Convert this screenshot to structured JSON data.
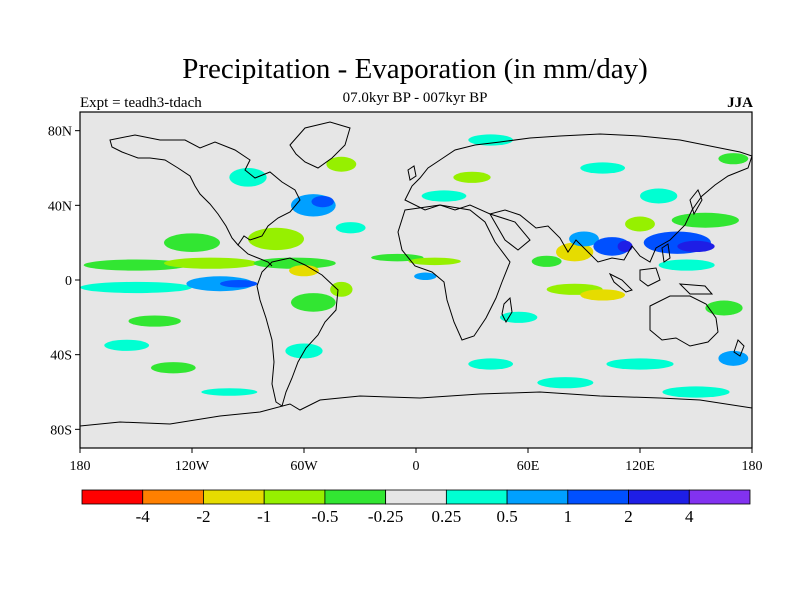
{
  "title": "Precipitation - Evaporation (in mm/day)",
  "subtitle": "07.0kyr BP - 007kyr BP",
  "experiment": "Expt = teadh3-tdach",
  "season": "JJA",
  "map": {
    "projection": "cylindrical equidistant",
    "lon_range": [
      -180,
      180
    ],
    "lat_range": [
      -90,
      90
    ],
    "lon_ticks": [
      {
        "value": -180,
        "label": "180"
      },
      {
        "value": -120,
        "label": "120W"
      },
      {
        "value": -60,
        "label": "60W"
      },
      {
        "value": 0,
        "label": "0"
      },
      {
        "value": 60,
        "label": "60E"
      },
      {
        "value": 120,
        "label": "120E"
      },
      {
        "value": 180,
        "label": "180"
      }
    ],
    "lat_ticks": [
      {
        "value": 80,
        "label": "80N"
      },
      {
        "value": 40,
        "label": "40N"
      },
      {
        "value": 0,
        "label": "0"
      },
      {
        "value": -40,
        "label": "40S"
      },
      {
        "value": -80,
        "label": "80S"
      }
    ],
    "background_color": "#e6e6e6",
    "coastline_color": "#000000"
  },
  "colorbar": {
    "colors": [
      "#ff0000",
      "#ff8000",
      "#e6dc00",
      "#96f000",
      "#32e632",
      "#e6e6e6",
      "#00ffd2",
      "#00a0ff",
      "#0050ff",
      "#1e1ee6",
      "#8232f0"
    ],
    "labels": [
      "-4",
      "-2",
      "-1",
      "-0.5",
      "-0.25",
      "0.25",
      "0.5",
      "1",
      "2",
      "4"
    ]
  },
  "field_patches": [
    {
      "lon": -150,
      "lat": 8,
      "rx": 28,
      "ry": 3,
      "level": 4
    },
    {
      "lon": -110,
      "lat": 9,
      "rx": 25,
      "ry": 3,
      "level": 3
    },
    {
      "lon": -65,
      "lat": 9,
      "rx": 22,
      "ry": 3,
      "level": 4
    },
    {
      "lon": -150,
      "lat": -4,
      "rx": 30,
      "ry": 3,
      "level": 6
    },
    {
      "lon": -105,
      "lat": -2,
      "rx": 18,
      "ry": 4,
      "level": 7
    },
    {
      "lon": -95,
      "lat": -2,
      "rx": 10,
      "ry": 2,
      "level": 8
    },
    {
      "lon": -120,
      "lat": 20,
      "rx": 15,
      "ry": 5,
      "level": 4
    },
    {
      "lon": -75,
      "lat": 22,
      "rx": 15,
      "ry": 6,
      "level": 3
    },
    {
      "lon": -55,
      "lat": 40,
      "rx": 12,
      "ry": 6,
      "level": 7
    },
    {
      "lon": -50,
      "lat": 42,
      "rx": 6,
      "ry": 3,
      "level": 8
    },
    {
      "lon": -40,
      "lat": 62,
      "rx": 8,
      "ry": 4,
      "level": 3
    },
    {
      "lon": -90,
      "lat": 55,
      "rx": 10,
      "ry": 5,
      "level": 6
    },
    {
      "lon": -60,
      "lat": 5,
      "rx": 8,
      "ry": 3,
      "level": 2
    },
    {
      "lon": -55,
      "lat": -12,
      "rx": 12,
      "ry": 5,
      "level": 4
    },
    {
      "lon": -40,
      "lat": -5,
      "rx": 6,
      "ry": 4,
      "level": 3
    },
    {
      "lon": -60,
      "lat": -38,
      "rx": 10,
      "ry": 4,
      "level": 6
    },
    {
      "lon": -140,
      "lat": -22,
      "rx": 14,
      "ry": 3,
      "level": 4
    },
    {
      "lon": -155,
      "lat": -35,
      "rx": 12,
      "ry": 3,
      "level": 6
    },
    {
      "lon": -130,
      "lat": -47,
      "rx": 12,
      "ry": 3,
      "level": 4
    },
    {
      "lon": -35,
      "lat": 28,
      "rx": 8,
      "ry": 3,
      "level": 6
    },
    {
      "lon": -10,
      "lat": 12,
      "rx": 14,
      "ry": 2,
      "level": 4
    },
    {
      "lon": 10,
      "lat": 10,
      "rx": 14,
      "ry": 2,
      "level": 3
    },
    {
      "lon": 15,
      "lat": 45,
      "rx": 12,
      "ry": 3,
      "level": 6
    },
    {
      "lon": 30,
      "lat": 55,
      "rx": 10,
      "ry": 3,
      "level": 3
    },
    {
      "lon": 40,
      "lat": 75,
      "rx": 12,
      "ry": 3,
      "level": 6
    },
    {
      "lon": 5,
      "lat": 2,
      "rx": 6,
      "ry": 2,
      "level": 7
    },
    {
      "lon": 55,
      "lat": -20,
      "rx": 10,
      "ry": 3,
      "level": 6
    },
    {
      "lon": 40,
      "lat": -45,
      "rx": 12,
      "ry": 3,
      "level": 6
    },
    {
      "lon": 85,
      "lat": 15,
      "rx": 10,
      "ry": 5,
      "level": 2
    },
    {
      "lon": 90,
      "lat": 22,
      "rx": 8,
      "ry": 4,
      "level": 7
    },
    {
      "lon": 105,
      "lat": 18,
      "rx": 10,
      "ry": 5,
      "level": 8
    },
    {
      "lon": 112,
      "lat": 18,
      "rx": 4,
      "ry": 3,
      "level": 9
    },
    {
      "lon": 70,
      "lat": 10,
      "rx": 8,
      "ry": 3,
      "level": 4
    },
    {
      "lon": 85,
      "lat": -5,
      "rx": 15,
      "ry": 3,
      "level": 3
    },
    {
      "lon": 100,
      "lat": -8,
      "rx": 12,
      "ry": 3,
      "level": 2
    },
    {
      "lon": 140,
      "lat": 20,
      "rx": 18,
      "ry": 6,
      "level": 8
    },
    {
      "lon": 150,
      "lat": 18,
      "rx": 10,
      "ry": 3,
      "level": 9
    },
    {
      "lon": 155,
      "lat": 32,
      "rx": 18,
      "ry": 4,
      "level": 4
    },
    {
      "lon": 145,
      "lat": 8,
      "rx": 15,
      "ry": 3,
      "level": 6
    },
    {
      "lon": 130,
      "lat": 45,
      "rx": 10,
      "ry": 4,
      "level": 6
    },
    {
      "lon": 120,
      "lat": 30,
      "rx": 8,
      "ry": 4,
      "level": 3
    },
    {
      "lon": 165,
      "lat": -15,
      "rx": 10,
      "ry": 4,
      "level": 4
    },
    {
      "lon": 170,
      "lat": -42,
      "rx": 8,
      "ry": 4,
      "level": 7
    },
    {
      "lon": 120,
      "lat": -45,
      "rx": 18,
      "ry": 3,
      "level": 6
    },
    {
      "lon": 80,
      "lat": -55,
      "rx": 15,
      "ry": 3,
      "level": 6
    },
    {
      "lon": 150,
      "lat": -60,
      "rx": 18,
      "ry": 3,
      "level": 6
    },
    {
      "lon": -100,
      "lat": -60,
      "rx": 15,
      "ry": 2,
      "level": 6
    },
    {
      "lon": 100,
      "lat": 60,
      "rx": 12,
      "ry": 3,
      "level": 6
    },
    {
      "lon": 170,
      "lat": 65,
      "rx": 8,
      "ry": 3,
      "level": 4
    }
  ]
}
